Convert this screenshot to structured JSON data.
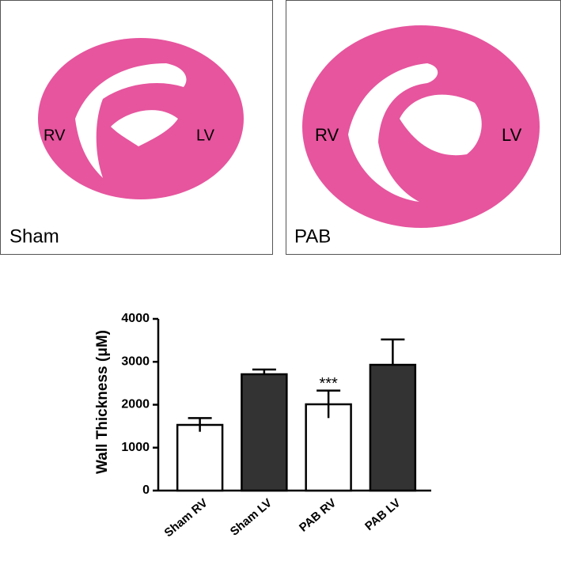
{
  "panels": [
    {
      "label": "Sham",
      "left": "RV",
      "right": "LV"
    },
    {
      "label": "PAB",
      "left": "RV",
      "right": "LV"
    }
  ],
  "chart_data": {
    "type": "bar",
    "ylabel": "Wall Thickness (μM)",
    "categories": [
      "Sham RV",
      "Sham LV",
      "PAB RV",
      "PAB LV"
    ],
    "values": [
      1530,
      2710,
      2010,
      2930
    ],
    "errors": [
      160,
      110,
      320,
      590
    ],
    "colors": [
      "#ffffff",
      "#333333",
      "#ffffff",
      "#333333"
    ],
    "ylim": [
      0,
      4000
    ],
    "yticks": [
      0,
      1000,
      2000,
      3000,
      4000
    ],
    "annotations": [
      {
        "text": "***",
        "category": "PAB RV"
      }
    ]
  }
}
